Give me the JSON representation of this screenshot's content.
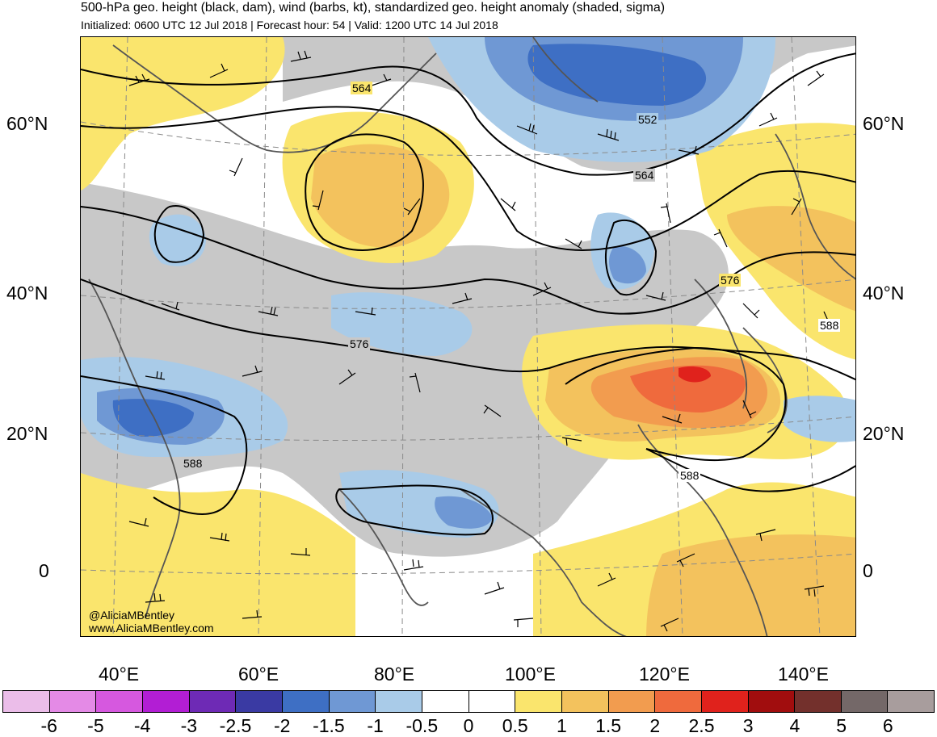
{
  "header": {
    "title": "500-hPa geo. height (black, dam), wind (barbs, kt), standardized geo. height anomaly (shaded, sigma)",
    "subtitle": "Initialized: 0600 UTC 12 Jul 2018 | Forecast hour: 54 | Valid: 1200 UTC 14 Jul 2018"
  },
  "map": {
    "lat_labels_left": [
      "60°N",
      "40°N",
      "20°N",
      "0"
    ],
    "lat_labels_right": [
      "60°N",
      "40°N",
      "20°N",
      "0"
    ],
    "lon_labels": [
      "40°E",
      "60°E",
      "80°E",
      "100°E",
      "120°E",
      "140°E"
    ],
    "contour_labels": [
      "564",
      "552",
      "564",
      "576",
      "588",
      "576",
      "588",
      "588"
    ],
    "credit_handle": "@AliciaMBentley",
    "credit_site": "www.AliciaMBentley.com"
  },
  "colorbar": {
    "labels": [
      "-6",
      "-5",
      "-4",
      "-3",
      "-2.5",
      "-2",
      "-1.5",
      "-1",
      "-0.5",
      "0",
      "0.5",
      "1",
      "1.5",
      "2",
      "2.5",
      "3",
      "4",
      "5",
      "6"
    ],
    "colors": [
      "#ebbde9",
      "#e48ae6",
      "#d658df",
      "#b21ed4",
      "#6e2ab5",
      "#3a3aa3",
      "#3e6fc4",
      "#6f98d4",
      "#a9cbe8",
      "#ffffff",
      "#ffffff",
      "#fae56d",
      "#f3c25d",
      "#f29c4f",
      "#ef6a3d",
      "#e0221c",
      "#a10d0e",
      "#73302c",
      "#746868",
      "#a89d9d"
    ]
  },
  "chart_data": {
    "type": "heatmap",
    "title": "500-hPa geo. height (black, dam), wind (barbs, kt), standardized geo. height anomaly (shaded, sigma)",
    "x_ticks": [
      "40°E",
      "60°E",
      "80°E",
      "100°E",
      "120°E",
      "140°E"
    ],
    "y_ticks": [
      "60°N",
      "40°N",
      "20°N",
      "0"
    ],
    "height_contour_values_dam": [
      552,
      564,
      576,
      588
    ],
    "colorbar_levels_sigma": [
      -6,
      -5,
      -4,
      -3,
      -2.5,
      -2,
      -1.5,
      -1,
      -0.5,
      0,
      0.5,
      1,
      1.5,
      2,
      2.5,
      3,
      4,
      5,
      6
    ],
    "colors": {
      "land_gray": "#c8c8c8",
      "coast": "#555555",
      "contour": "#000000"
    }
  }
}
